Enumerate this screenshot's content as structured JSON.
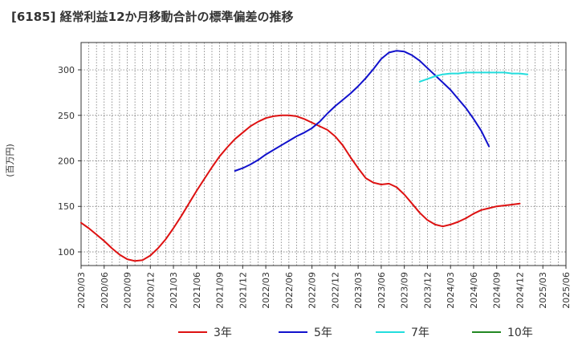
{
  "chart_data": {
    "type": "line",
    "title": "[6185]  経常利益12か月移動合計の標準偏差の推移",
    "ylabel": "(百万円)",
    "xlabel": "",
    "ylim": [
      85,
      330
    ],
    "yticks": [
      100,
      150,
      200,
      250,
      300
    ],
    "x_ticks": [
      "2020/03",
      "2020/06",
      "2020/09",
      "2020/12",
      "2021/03",
      "2021/06",
      "2021/09",
      "2021/12",
      "2022/03",
      "2022/06",
      "2022/09",
      "2022/12",
      "2023/03",
      "2023/06",
      "2023/09",
      "2023/12",
      "2024/03",
      "2024/06",
      "2024/09",
      "2024/12",
      "2025/03",
      "2025/06"
    ],
    "grid": true,
    "legend_position": "bottom",
    "series": [
      {
        "name": "3年",
        "color": "#dd1111",
        "start_index": 0,
        "values": [
          132,
          126,
          119,
          112,
          104,
          97,
          92,
          90,
          91,
          96,
          104,
          114,
          126,
          139,
          153,
          167,
          180,
          193,
          205,
          215,
          224,
          231,
          238,
          243,
          247,
          249,
          250,
          250,
          249,
          246,
          242,
          238,
          234,
          227,
          217,
          204,
          192,
          181,
          176,
          174,
          175,
          171,
          163,
          153,
          143,
          135,
          130,
          128,
          130,
          133,
          137,
          142,
          146,
          148,
          150,
          151,
          152,
          153
        ]
      },
      {
        "name": "5年",
        "color": "#1111cc",
        "start_index": 20,
        "values": [
          189,
          192,
          196,
          201,
          207,
          212,
          217,
          222,
          227,
          231,
          236,
          243,
          252,
          260,
          267,
          274,
          282,
          291,
          301,
          312,
          319,
          321,
          320,
          316,
          310,
          302,
          294,
          286,
          278,
          268,
          258,
          246,
          233,
          216
        ]
      },
      {
        "name": "7年",
        "color": "#22dddd",
        "start_index": 44,
        "values": [
          287,
          290,
          293,
          295,
          296,
          296,
          297,
          297,
          297,
          297,
          297,
          297,
          296,
          296,
          295
        ]
      },
      {
        "name": "10年",
        "color": "#228822",
        "start_index": 0,
        "values": []
      }
    ]
  }
}
